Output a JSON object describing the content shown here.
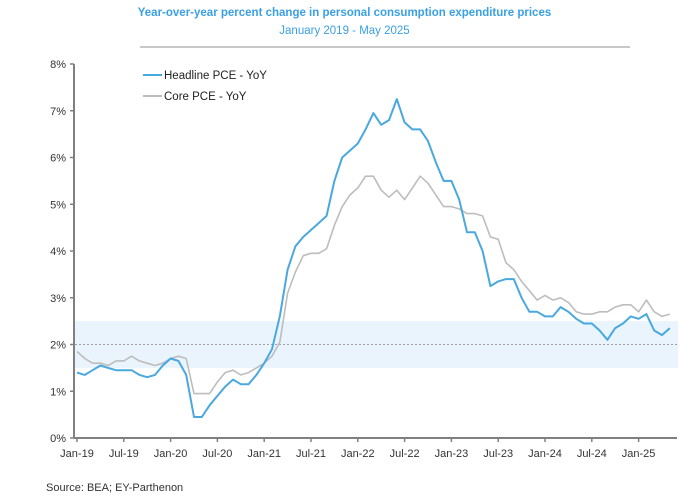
{
  "header": {
    "title": "Year-over-year percent change in personal consumption expenditure prices",
    "subtitle": "January 2019 - May 2025"
  },
  "footer": {
    "source": "Source: BEA; EY-Parthenon"
  },
  "colors": {
    "headline": "#4aa8e0",
    "core": "#bdbdbd",
    "band": "#eaf4fc",
    "axis": "#808080",
    "title": "#3aa0e6"
  },
  "chart_data": {
    "type": "line",
    "title": "Year-over-year percent change in personal consumption expenditure prices",
    "subtitle": "January 2019 - May 2025",
    "xlabel": "",
    "ylabel": "",
    "ylim": [
      0,
      8
    ],
    "yticks": [
      "0%",
      "1%",
      "2%",
      "3%",
      "4%",
      "5%",
      "6%",
      "7%",
      "8%"
    ],
    "xticks": [
      "Jan-19",
      "Jul-19",
      "Jan-20",
      "Jul-20",
      "Jan-21",
      "Jul-21",
      "Jan-22",
      "Jul-22",
      "Jan-23",
      "Jul-23",
      "Jan-24",
      "Jul-24",
      "Jan-25"
    ],
    "x_start": "Jan-2019",
    "x_frequency": "monthly",
    "legend_position": "top-left",
    "target_band": {
      "low": 1.5,
      "high": 2.5
    },
    "reference_line": 2.0,
    "grid": false,
    "series": [
      {
        "name": "Headline PCE - YoY",
        "values": [
          1.4,
          1.35,
          1.45,
          1.55,
          1.5,
          1.45,
          1.45,
          1.45,
          1.35,
          1.3,
          1.35,
          1.55,
          1.7,
          1.65,
          1.35,
          0.45,
          0.45,
          0.7,
          0.9,
          1.1,
          1.25,
          1.15,
          1.15,
          1.35,
          1.6,
          1.9,
          2.6,
          3.6,
          4.1,
          4.3,
          4.45,
          4.6,
          4.75,
          5.5,
          6.0,
          6.15,
          6.3,
          6.6,
          6.95,
          6.7,
          6.8,
          7.25,
          6.75,
          6.6,
          6.6,
          6.35,
          5.9,
          5.5,
          5.5,
          5.1,
          4.4,
          4.4,
          4.0,
          3.25,
          3.35,
          3.4,
          3.4,
          3.0,
          2.7,
          2.7,
          2.6,
          2.6,
          2.8,
          2.7,
          2.55,
          2.45,
          2.45,
          2.3,
          2.1,
          2.35,
          2.45,
          2.6,
          2.55,
          2.65,
          2.3,
          2.2,
          2.35
        ]
      },
      {
        "name": "Core PCE - YoY",
        "values": [
          1.85,
          1.7,
          1.6,
          1.6,
          1.55,
          1.65,
          1.65,
          1.75,
          1.65,
          1.6,
          1.55,
          1.6,
          1.7,
          1.75,
          1.7,
          0.95,
          0.95,
          0.95,
          1.2,
          1.4,
          1.45,
          1.35,
          1.4,
          1.5,
          1.6,
          1.75,
          2.05,
          3.1,
          3.55,
          3.9,
          3.95,
          3.95,
          4.05,
          4.55,
          4.95,
          5.2,
          5.35,
          5.6,
          5.6,
          5.3,
          5.15,
          5.3,
          5.1,
          5.35,
          5.6,
          5.45,
          5.2,
          4.95,
          4.95,
          4.9,
          4.8,
          4.8,
          4.75,
          4.3,
          4.25,
          3.75,
          3.6,
          3.35,
          3.15,
          2.95,
          3.05,
          2.95,
          3.0,
          2.9,
          2.7,
          2.65,
          2.65,
          2.7,
          2.7,
          2.8,
          2.85,
          2.85,
          2.7,
          2.95,
          2.7,
          2.6,
          2.65
        ]
      }
    ]
  }
}
